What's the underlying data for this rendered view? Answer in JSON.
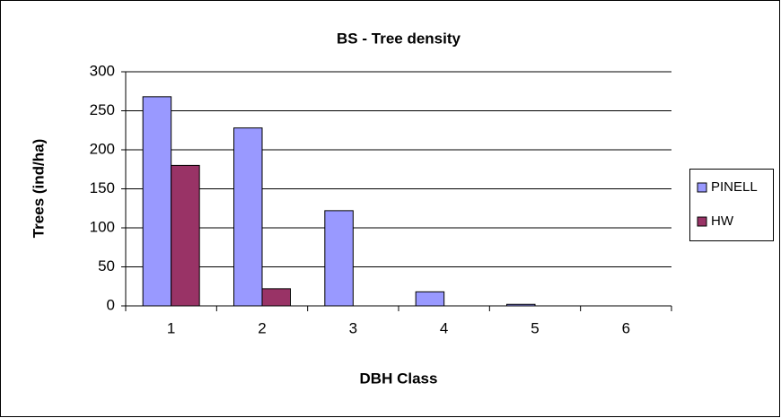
{
  "chart_data": {
    "type": "bar",
    "title": "BS - Tree density",
    "x_label": "DBH Class",
    "y_label": "Trees (ind/ha)",
    "categories": [
      "1",
      "2",
      "3",
      "4",
      "5",
      "6"
    ],
    "series": [
      {
        "name": "PINELL",
        "color": "#9999ff",
        "values": [
          268,
          228,
          122,
          18,
          2,
          0
        ]
      },
      {
        "name": "HW",
        "color": "#993366",
        "values": [
          180,
          22,
          0,
          0,
          0,
          0
        ]
      }
    ],
    "ylim": [
      0,
      300
    ],
    "yticks": [
      0,
      50,
      100,
      150,
      200,
      250,
      300
    ],
    "grid": true,
    "legend": "right"
  }
}
